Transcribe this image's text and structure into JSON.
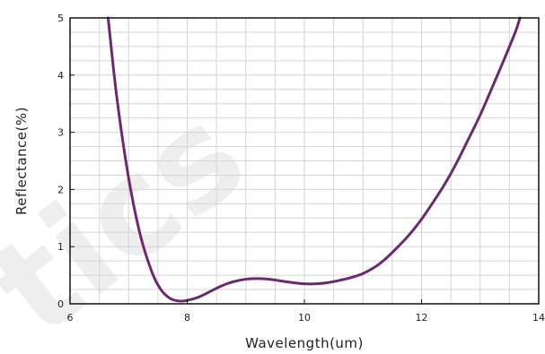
{
  "chart_data": {
    "type": "line",
    "xlabel": "Wavelength(um)",
    "ylabel": "Reflectance(%)",
    "xlim": [
      6,
      14
    ],
    "ylim": [
      0,
      5
    ],
    "x_ticks": [
      6,
      8,
      10,
      12,
      14
    ],
    "y_ticks": [
      0,
      1,
      2,
      3,
      4,
      5
    ],
    "grid": true,
    "series": [
      {
        "color": "#6b2a6e",
        "x": [
          6.65,
          6.8,
          7.0,
          7.2,
          7.4,
          7.55,
          7.7,
          7.85,
          8.0,
          8.2,
          8.4,
          8.6,
          8.8,
          9.0,
          9.2,
          9.4,
          9.6,
          9.8,
          10.0,
          10.2,
          10.4,
          10.6,
          10.8,
          11.0,
          11.2,
          11.4,
          11.6,
          11.8,
          12.0,
          12.2,
          12.4,
          12.6,
          12.8,
          13.0,
          13.2,
          13.4,
          13.6,
          13.68
        ],
        "y": [
          5.0,
          3.6,
          2.2,
          1.2,
          0.55,
          0.25,
          0.1,
          0.05,
          0.06,
          0.12,
          0.22,
          0.32,
          0.39,
          0.43,
          0.44,
          0.43,
          0.4,
          0.37,
          0.35,
          0.35,
          0.37,
          0.41,
          0.46,
          0.53,
          0.64,
          0.8,
          1.0,
          1.22,
          1.48,
          1.78,
          2.1,
          2.47,
          2.88,
          3.3,
          3.77,
          4.25,
          4.75,
          5.0
        ]
      }
    ]
  },
  "watermark": {
    "text": "tics"
  }
}
